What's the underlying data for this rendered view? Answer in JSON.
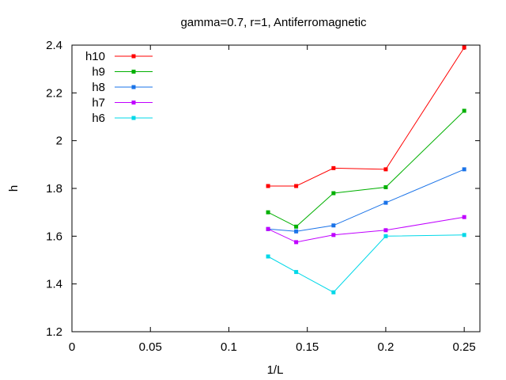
{
  "chart_data": {
    "type": "line",
    "title": "gamma=0.7, r=1, Antiferromagnetic",
    "xlabel": "1/L",
    "ylabel": "h",
    "xlim": [
      0,
      0.26
    ],
    "ylim": [
      1.2,
      2.4
    ],
    "xticks": [
      0,
      0.05,
      0.1,
      0.15,
      0.2,
      0.25
    ],
    "xtick_labels": [
      "0",
      "0.05",
      "0.1",
      "0.15",
      "0.2",
      "0.25"
    ],
    "yticks": [
      1.2,
      1.4,
      1.6,
      1.8,
      2.0,
      2.2,
      2.4
    ],
    "ytick_labels": [
      "1.2",
      "1.4",
      "1.6",
      "1.8",
      "2",
      "2.2",
      "2.4"
    ],
    "grid": false,
    "legend_position": "top-left",
    "x": [
      0.125,
      0.1429,
      0.1667,
      0.2,
      0.25
    ],
    "series": [
      {
        "name": "h10",
        "color": "#ff0000",
        "values": [
          1.81,
          1.81,
          1.885,
          1.88,
          2.39
        ]
      },
      {
        "name": "h9",
        "color": "#00b000",
        "values": [
          1.7,
          1.64,
          1.78,
          1.805,
          2.125
        ]
      },
      {
        "name": "h8",
        "color": "#1a73e8",
        "values": [
          1.63,
          1.62,
          1.645,
          1.74,
          1.88
        ]
      },
      {
        "name": "h7",
        "color": "#c000ff",
        "values": [
          1.63,
          1.575,
          1.605,
          1.625,
          1.68
        ]
      },
      {
        "name": "h6",
        "color": "#00d8e8",
        "values": [
          1.515,
          1.45,
          1.365,
          1.6,
          1.605
        ]
      }
    ]
  }
}
